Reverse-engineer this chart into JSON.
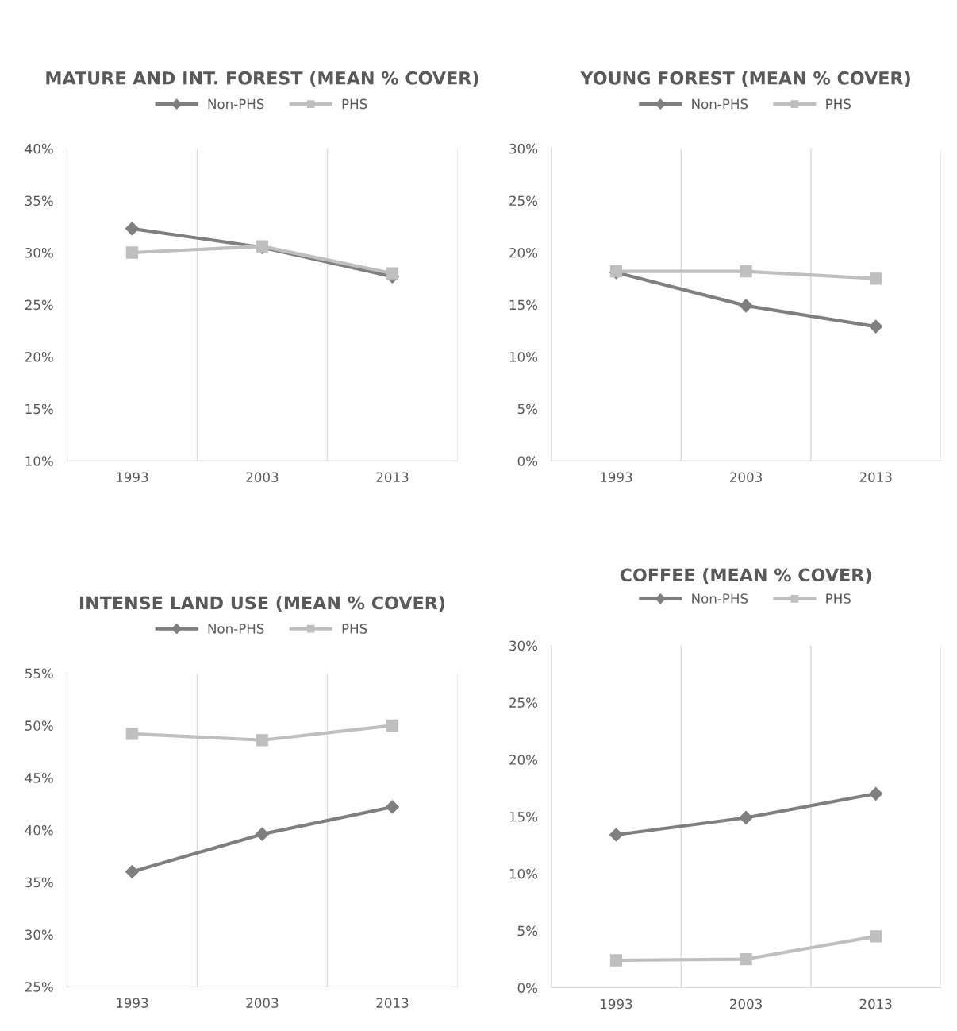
{
  "chart_data": [
    {
      "type": "line",
      "title": "MATURE AND INT. FOREST (MEAN % COVER)",
      "categories": [
        "1993",
        "2003",
        "2013"
      ],
      "series": [
        {
          "name": "Non-PHS",
          "color": "#7f7f7f",
          "marker": "diamond",
          "values": [
            32.3,
            30.5,
            27.7
          ]
        },
        {
          "name": "PHS",
          "color": "#bfbfbf",
          "marker": "square",
          "values": [
            30.0,
            30.6,
            28.0
          ]
        }
      ],
      "ylim": [
        10,
        40
      ],
      "yticks": [
        {
          "value": 10,
          "label": "10%"
        },
        {
          "value": 15,
          "label": "15%"
        },
        {
          "value": 20,
          "label": "20%"
        },
        {
          "value": 25,
          "label": "25%"
        },
        {
          "value": 30,
          "label": "30%"
        },
        {
          "value": 35,
          "label": "35%"
        },
        {
          "value": 40,
          "label": "40%"
        }
      ],
      "grid": "x",
      "legend": "top"
    },
    {
      "type": "line",
      "title": "YOUNG FOREST (MEAN % COVER)",
      "categories": [
        "1993",
        "2003",
        "2013"
      ],
      "series": [
        {
          "name": "Non-PHS",
          "color": "#7f7f7f",
          "marker": "diamond",
          "values": [
            18.1,
            14.9,
            12.9
          ]
        },
        {
          "name": "PHS",
          "color": "#bfbfbf",
          "marker": "square",
          "values": [
            18.2,
            18.2,
            17.5
          ]
        }
      ],
      "ylim": [
        0,
        30
      ],
      "yticks": [
        {
          "value": 0,
          "label": "0%"
        },
        {
          "value": 5,
          "label": "5%"
        },
        {
          "value": 10,
          "label": "10%"
        },
        {
          "value": 15,
          "label": "15%"
        },
        {
          "value": 20,
          "label": "20%"
        },
        {
          "value": 25,
          "label": "25%"
        },
        {
          "value": 30,
          "label": "30%"
        }
      ],
      "grid": "x",
      "legend": "top"
    },
    {
      "type": "line",
      "title": "INTENSE LAND USE (MEAN % COVER)",
      "categories": [
        "1993",
        "2003",
        "2013"
      ],
      "series": [
        {
          "name": "Non-PHS",
          "color": "#7f7f7f",
          "marker": "diamond",
          "values": [
            36.0,
            39.6,
            42.2
          ]
        },
        {
          "name": "PHS",
          "color": "#bfbfbf",
          "marker": "square",
          "values": [
            49.2,
            48.6,
            50.0
          ]
        }
      ],
      "ylim": [
        25,
        55
      ],
      "yticks": [
        {
          "value": 25,
          "label": "25%"
        },
        {
          "value": 30,
          "label": "30%"
        },
        {
          "value": 35,
          "label": "35%"
        },
        {
          "value": 40,
          "label": "40%"
        },
        {
          "value": 45,
          "label": "45%"
        },
        {
          "value": 50,
          "label": "50%"
        },
        {
          "value": 55,
          "label": "55%"
        }
      ],
      "grid": "x",
      "legend": "top"
    },
    {
      "type": "line",
      "title": "COFFEE (MEAN % COVER)",
      "categories": [
        "1993",
        "2003",
        "2013"
      ],
      "series": [
        {
          "name": "Non-PHS",
          "color": "#7f7f7f",
          "marker": "diamond",
          "values": [
            13.4,
            14.9,
            17.0
          ]
        },
        {
          "name": "PHS",
          "color": "#bfbfbf",
          "marker": "square",
          "values": [
            2.4,
            2.5,
            4.5
          ]
        }
      ],
      "ylim": [
        0,
        30
      ],
      "yticks": [
        {
          "value": 0,
          "label": "0%"
        },
        {
          "value": 5,
          "label": "5%"
        },
        {
          "value": 10,
          "label": "10%"
        },
        {
          "value": 15,
          "label": "15%"
        },
        {
          "value": 20,
          "label": "20%"
        },
        {
          "value": 25,
          "label": "25%"
        },
        {
          "value": 30,
          "label": "30%"
        }
      ],
      "grid": "x",
      "legend": "top"
    }
  ]
}
